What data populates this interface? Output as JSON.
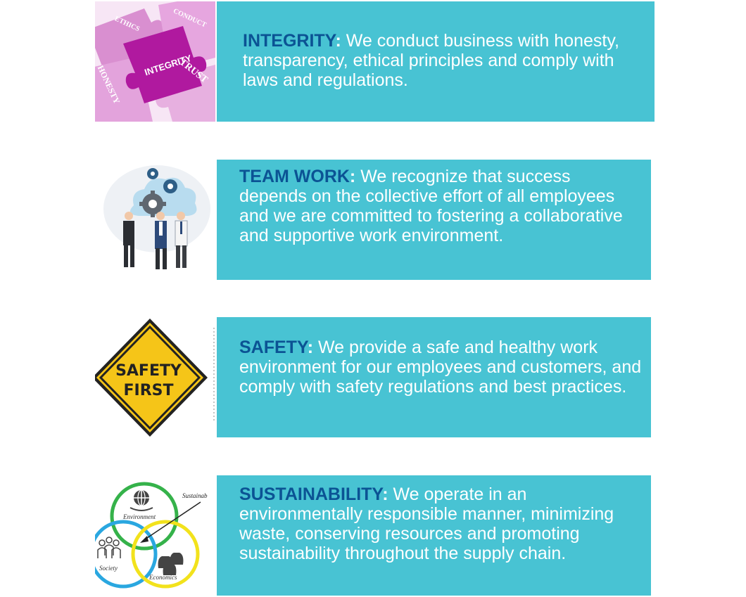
{
  "colors": {
    "panel_background": "#48C3D3",
    "heading_color": "#0B5394",
    "body_text_color": "#FFFFFF"
  },
  "values": [
    {
      "image": {
        "icon": "puzzle-pieces-icon",
        "words": [
          "INTEGRITY",
          "ETHICS",
          "CONDUCT",
          "HONESTY",
          "TRUST"
        ]
      },
      "heading": "INTEGRITY",
      "colon": ":",
      "description": " We conduct business with honesty, transparency, ethical principles and comply with laws and regulations."
    },
    {
      "image": {
        "icon": "team-gears-icon"
      },
      "heading": "TEAM WORK",
      "colon": ":",
      "description": " We recognize that success depends on the collective effort of all employees and we are committed to fostering a collaborative and supportive work environment."
    },
    {
      "image": {
        "icon": "safety-sign-icon",
        "sign_lines": [
          "SAFETY",
          "FIRST"
        ]
      },
      "heading": "SAFETY",
      "colon": ":",
      "description": " We provide a safe and healthy work environment for our employees and customers, and comply with safety regulations and best practices."
    },
    {
      "image": {
        "icon": "sustainability-venn-icon",
        "labels": [
          "Environment",
          "Society",
          "Economics",
          "Sustainab"
        ]
      },
      "heading": "SUSTAINABILITY",
      "colon": ":",
      "description": " We operate in an environmentally responsible manner, minimizing waste, conserving resources and promoting sustainability throughout the supply chain."
    }
  ]
}
